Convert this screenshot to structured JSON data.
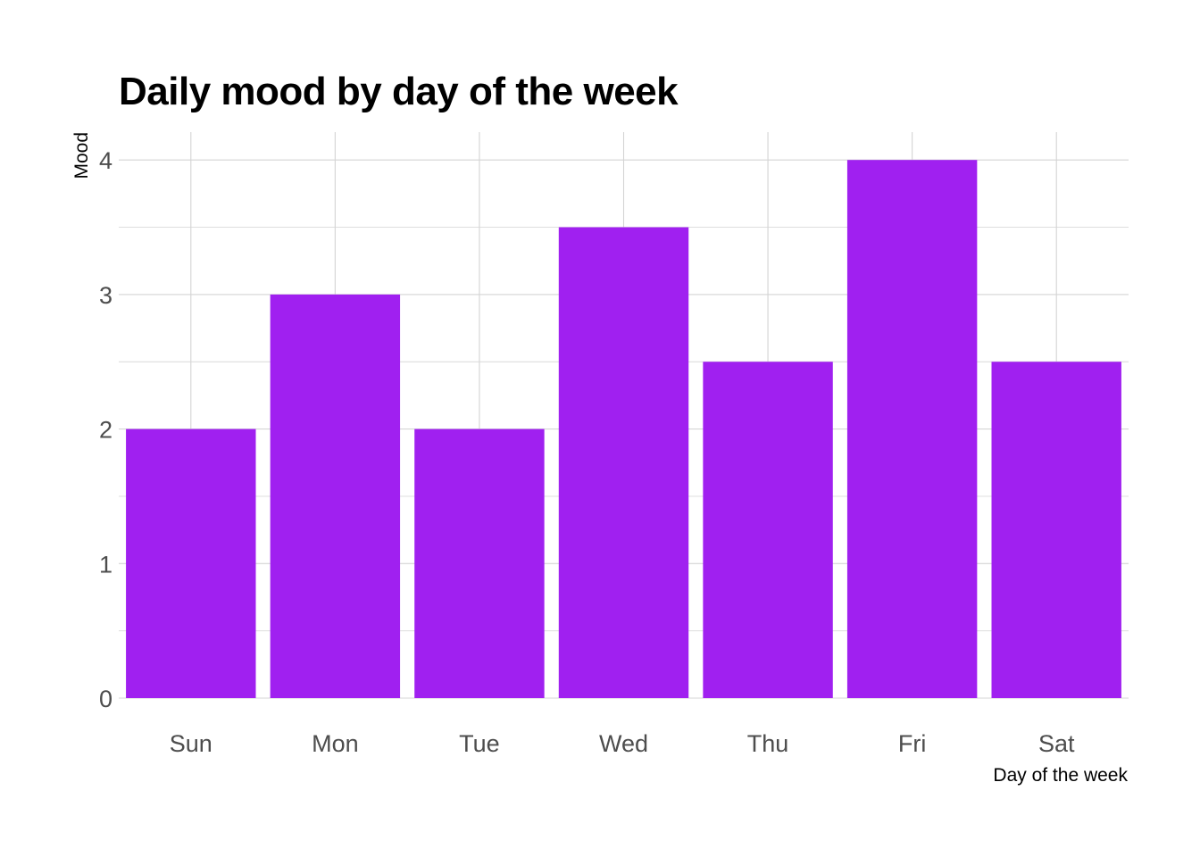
{
  "chart_data": {
    "type": "bar",
    "title": "Daily mood by day of the week",
    "xlabel": "Day of the week",
    "ylabel": "Mood",
    "categories": [
      "Sun",
      "Mon",
      "Tue",
      "Wed",
      "Thu",
      "Fri",
      "Sat"
    ],
    "values": [
      2,
      3,
      2,
      3.5,
      2.5,
      4,
      2.5
    ],
    "ylim": [
      0,
      4.2
    ],
    "yticks": [
      "0",
      "1",
      "2",
      "3",
      "4"
    ],
    "grid": true,
    "legend": "none",
    "bar_color": "#a020f0"
  }
}
